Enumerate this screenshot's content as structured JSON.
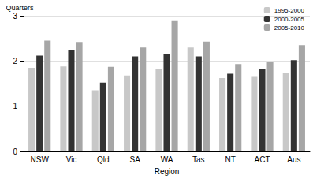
{
  "chart_data": {
    "type": "bar",
    "y_label": "Quarters",
    "x_label": "Region",
    "categories": [
      "NSW",
      "Vic",
      "Qld",
      "SA",
      "WA",
      "Tas",
      "NT",
      "ACT",
      "Aus"
    ],
    "series": [
      {
        "name": "1995-2000",
        "color": "#c8c8c8",
        "values": [
          1.85,
          1.88,
          1.35,
          1.68,
          1.82,
          2.3,
          1.62,
          1.65,
          1.73
        ]
      },
      {
        "name": "2000-2005",
        "color": "#333333",
        "values": [
          2.12,
          2.25,
          1.52,
          2.1,
          2.15,
          2.1,
          1.72,
          1.83,
          2.02
        ]
      },
      {
        "name": "2005-2010",
        "color": "#a6a6a6",
        "values": [
          2.45,
          2.42,
          1.87,
          2.3,
          2.9,
          2.43,
          1.93,
          1.98,
          2.35
        ]
      }
    ],
    "ylim": [
      0,
      3
    ],
    "yticks": [
      0,
      1,
      2,
      3
    ],
    "grid": true,
    "legend": "top-right"
  }
}
